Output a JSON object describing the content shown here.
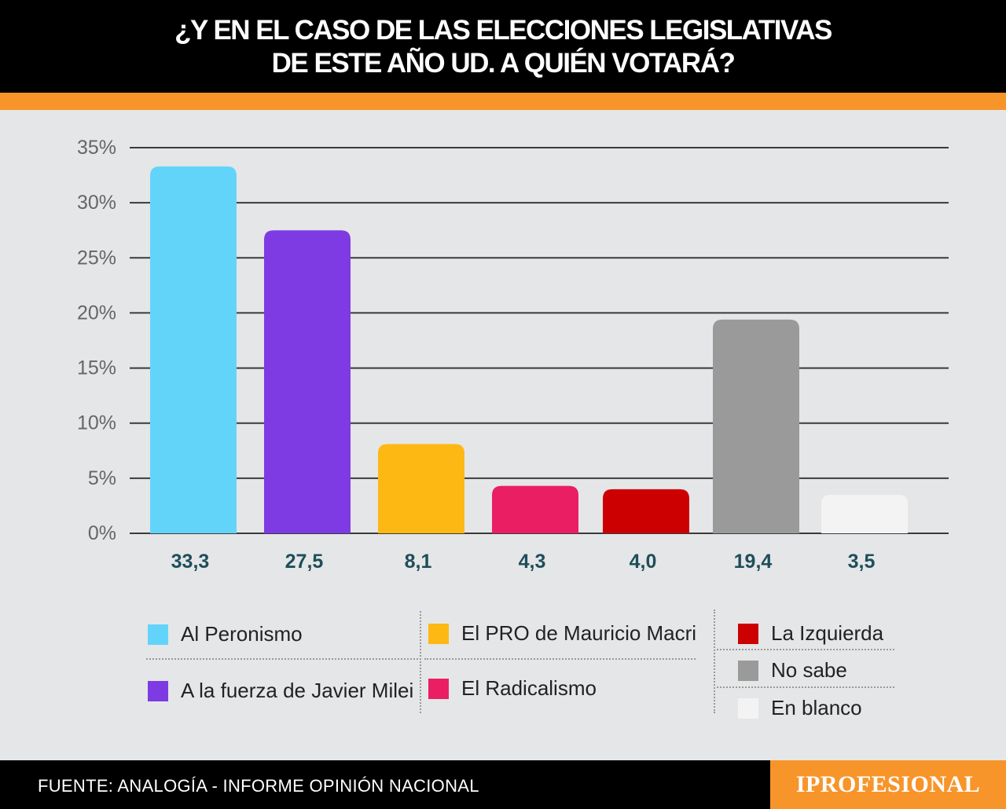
{
  "title": {
    "line1": "¿Y EN EL CASO DE LAS ELECCIONES LEGISLATIVAS",
    "line2": "DE ESTE AÑO UD. A QUIÉN VOTARÁ?"
  },
  "chart_data": {
    "type": "bar",
    "categories": [
      "Al Peronismo",
      "A la fuerza de Javier Milei",
      "El PRO de Mauricio Macri",
      "El Radicalismo",
      "La Izquierda",
      "No sabe",
      "En blanco"
    ],
    "values": [
      33.3,
      27.5,
      8.1,
      4.3,
      4.0,
      19.4,
      3.5
    ],
    "value_labels": [
      "33,3",
      "27,5",
      "8,1",
      "4,3",
      "4,0",
      "19,4",
      "3,5"
    ],
    "colors": [
      "#62d4fa",
      "#7e3be3",
      "#fdb813",
      "#e91e63",
      "#cc0000",
      "#9a9a9a",
      "#f3f3f3"
    ],
    "ylim": [
      0,
      35
    ],
    "yticks": [
      "0%",
      "5%",
      "10%",
      "15%",
      "20%",
      "25%",
      "30%",
      "35%"
    ],
    "grid": true,
    "legend_position": "bottom"
  },
  "legend": [
    {
      "label": "Al Peronismo",
      "color": "#62d4fa"
    },
    {
      "label": "A la fuerza de Javier Milei",
      "color": "#7e3be3"
    },
    {
      "label": "El PRO de Mauricio Macri",
      "color": "#fdb813"
    },
    {
      "label": "El Radicalismo",
      "color": "#e91e63"
    },
    {
      "label": "La Izquierda",
      "color": "#cc0000"
    },
    {
      "label": "No sabe",
      "color": "#9a9a9a"
    },
    {
      "label": "En blanco",
      "color": "#f3f3f3"
    }
  ],
  "footer": {
    "source": "FUENTE: ANALOGÍA - INFORME OPINIÓN NACIONAL",
    "logo": "IPROFESIONAL"
  }
}
